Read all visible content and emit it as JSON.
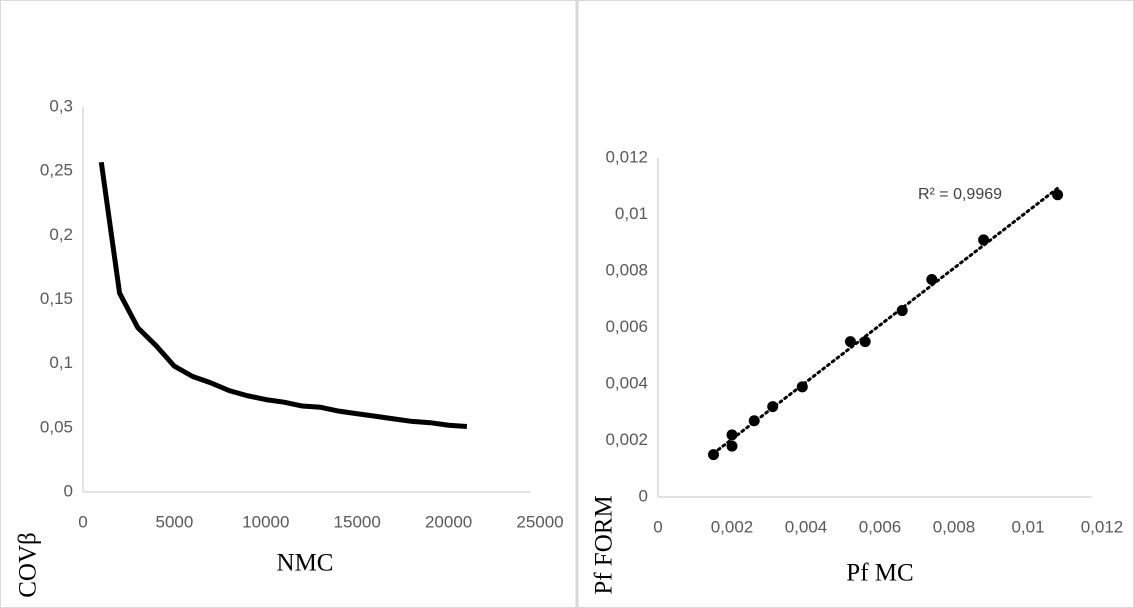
{
  "chart_data": [
    {
      "type": "line",
      "x_label": "NMC",
      "y_label": "COVβ",
      "color": "#000000",
      "x": [
        1000,
        2000,
        3000,
        4000,
        5000,
        6000,
        7000,
        8000,
        9000,
        10000,
        11000,
        12000,
        13000,
        14000,
        15000,
        16000,
        17000,
        18000,
        19000,
        20000,
        21000
      ],
      "values": [
        0.257,
        0.155,
        0.128,
        0.114,
        0.098,
        0.09,
        0.085,
        0.079,
        0.075,
        0.072,
        0.07,
        0.067,
        0.066,
        0.063,
        0.061,
        0.059,
        0.057,
        0.055,
        0.054,
        0.052,
        0.051
      ],
      "xlim": [
        0,
        25000
      ],
      "xticks": [
        0,
        5000,
        10000,
        15000,
        20000,
        25000
      ],
      "ylim": [
        0,
        0.3
      ],
      "yticks": [
        0,
        {
          "value": 0.05,
          "label": "0,05"
        },
        {
          "value": 0.1,
          "label": "0,1"
        },
        {
          "value": 0.15,
          "label": "0,15"
        },
        {
          "value": 0.2,
          "label": "0,2"
        },
        {
          "value": 0.25,
          "label": "0,25"
        },
        {
          "value": 0.3,
          "label": "0,3"
        }
      ]
    },
    {
      "type": "scatter",
      "x_label": "Pf MC",
      "y_label": "Pf FORM",
      "color": "#000000",
      "trendline": true,
      "annotation": "R² = 0,9969",
      "x": [
        0.0015,
        0.002,
        0.002,
        0.0026,
        0.0031,
        0.0039,
        0.0052,
        0.0056,
        0.0066,
        0.0074,
        0.0088,
        0.0108
      ],
      "values": [
        0.0015,
        0.0022,
        0.0018,
        0.0027,
        0.0032,
        0.0039,
        0.0055,
        0.0055,
        0.0066,
        0.0077,
        0.0091,
        0.0107
      ],
      "xlim": [
        0,
        0.012
      ],
      "xticks": [
        0,
        {
          "value": 0.002,
          "label": "0,002"
        },
        {
          "value": 0.004,
          "label": "0,004"
        },
        {
          "value": 0.006,
          "label": "0,006"
        },
        {
          "value": 0.008,
          "label": "0,008"
        },
        {
          "value": 0.01,
          "label": "0,01"
        },
        {
          "value": 0.012,
          "label": "0,012"
        }
      ],
      "ylim": [
        0,
        0.012
      ],
      "yticks": [
        0,
        {
          "value": 0.002,
          "label": "0,002"
        },
        {
          "value": 0.004,
          "label": "0,004"
        },
        {
          "value": 0.006,
          "label": "0,006"
        },
        {
          "value": 0.008,
          "label": "0,008"
        },
        {
          "value": 0.01,
          "label": "0,01"
        },
        {
          "value": 0.012,
          "label": "0,012"
        }
      ]
    }
  ]
}
